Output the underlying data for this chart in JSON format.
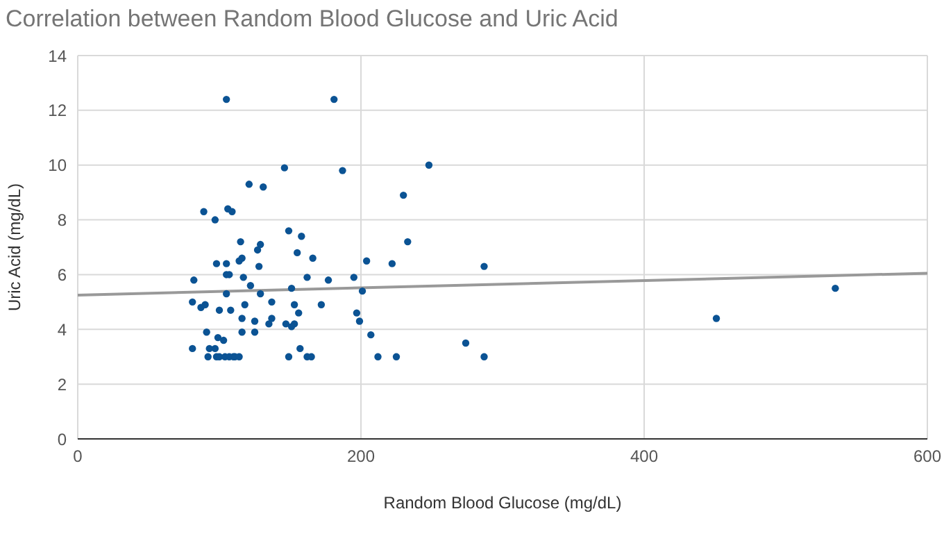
{
  "chart_data": {
    "type": "scatter",
    "title": "Correlation between Random Blood Glucose and Uric Acid",
    "xlabel": "Random Blood Glucose (mg/dL)",
    "ylabel": "Uric Acid (mg/dL)",
    "xlim": [
      0,
      600
    ],
    "xticks": [
      0,
      200,
      400,
      600
    ],
    "ylim": [
      0,
      14
    ],
    "yticks": [
      0,
      2,
      4,
      6,
      8,
      10,
      12,
      14
    ],
    "grid": true,
    "series": [
      {
        "marker": "circle",
        "color": "#0b5394",
        "x": [
          105,
          181,
          146,
          187,
          121,
          131,
          230,
          89,
          97,
          106,
          109,
          149,
          158,
          115,
          129,
          127,
          155,
          233,
          166,
          116,
          114,
          98,
          105,
          128,
          204,
          222,
          105,
          107,
          82,
          117,
          162,
          177,
          195,
          122,
          151,
          105,
          129,
          201,
          81,
          87,
          90,
          100,
          108,
          118,
          137,
          153,
          172,
          156,
          197,
          116,
          125,
          137,
          135,
          147,
          153,
          151,
          199,
          91,
          116,
          125,
          99,
          103,
          207,
          81,
          93,
          97,
          157,
          92,
          98,
          100,
          104,
          107,
          110,
          111,
          114,
          149,
          162,
          165,
          212,
          225,
          248,
          287,
          274,
          287,
          451,
          535
        ],
        "values": [
          12.4,
          12.4,
          9.9,
          9.8,
          9.3,
          9.2,
          8.9,
          8.3,
          8.0,
          8.4,
          8.3,
          7.6,
          7.4,
          7.2,
          7.1,
          6.9,
          6.8,
          7.2,
          6.6,
          6.6,
          6.5,
          6.4,
          6.4,
          6.3,
          6.5,
          6.4,
          6.0,
          6.0,
          5.8,
          5.9,
          5.9,
          5.8,
          5.9,
          5.6,
          5.5,
          5.3,
          5.3,
          5.4,
          5.0,
          4.8,
          4.9,
          4.7,
          4.7,
          4.9,
          5.0,
          4.9,
          4.9,
          4.6,
          4.6,
          4.4,
          4.3,
          4.4,
          4.2,
          4.2,
          4.2,
          4.1,
          4.3,
          3.9,
          3.9,
          3.9,
          3.7,
          3.6,
          3.8,
          3.3,
          3.3,
          3.3,
          3.3,
          3.0,
          3.0,
          3.0,
          3.0,
          3.0,
          3.0,
          3.0,
          3.0,
          3.0,
          3.0,
          3.0,
          3.0,
          3.0,
          10.0,
          6.3,
          3.5,
          3.0,
          4.4,
          5.5
        ]
      },
      {
        "type": "line",
        "marker": "none",
        "color": "#999999",
        "x": [
          0,
          600
        ],
        "values": [
          5.25,
          6.05
        ]
      }
    ]
  }
}
